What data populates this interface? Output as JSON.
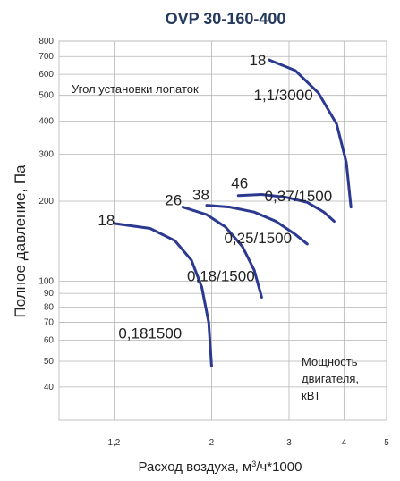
{
  "chart_data": {
    "type": "line",
    "title": "OVP 30-160-400",
    "xlabel": "Расход воздуха, м³/ч*1000",
    "ylabel": "Полное давление, Па",
    "x_scale": "log",
    "y_scale": "log",
    "xlim": [
      0.9,
      5
    ],
    "ylim": [
      30,
      800
    ],
    "x_ticks": [
      {
        "value": 1.2,
        "label": "1,2"
      },
      {
        "value": 2,
        "label": "2"
      },
      {
        "value": 3,
        "label": "3"
      },
      {
        "value": 4,
        "label": "4"
      },
      {
        "value": 5,
        "label": "5"
      }
    ],
    "y_ticks": [
      {
        "value": 40,
        "label": "40"
      },
      {
        "value": 50,
        "label": "50"
      },
      {
        "value": 60,
        "label": "60"
      },
      {
        "value": 70,
        "label": "70"
      },
      {
        "value": 80,
        "label": "80"
      },
      {
        "value": 90,
        "label": "90"
      },
      {
        "value": 100,
        "label": "100"
      },
      {
        "value": 200,
        "label": "200"
      },
      {
        "value": 300,
        "label": "300"
      },
      {
        "value": 400,
        "label": "400"
      },
      {
        "value": 500,
        "label": "500"
      },
      {
        "value": 600,
        "label": "600"
      },
      {
        "value": 700,
        "label": "700"
      },
      {
        "value": 800,
        "label": "800"
      }
    ],
    "grid": true,
    "annotations": {
      "blade_angle": "Угол установки лопаток",
      "motor_power": [
        "Мощность",
        "двигателя,",
        "кВТ"
      ]
    },
    "series": [
      {
        "angle_label": "18",
        "power_label": "1,1/3000",
        "points": [
          [
            2.7,
            680
          ],
          [
            3.1,
            620
          ],
          [
            3.5,
            510
          ],
          [
            3.85,
            390
          ],
          [
            4.05,
            280
          ],
          [
            4.15,
            190
          ]
        ]
      },
      {
        "angle_label": "46",
        "power_label": "0,37/1500",
        "points": [
          [
            2.3,
            210
          ],
          [
            2.6,
            212
          ],
          [
            2.95,
            207
          ],
          [
            3.3,
            198
          ],
          [
            3.6,
            182
          ],
          [
            3.8,
            168
          ]
        ]
      },
      {
        "angle_label": "38",
        "power_label": "0,25/1500",
        "points": [
          [
            1.95,
            193
          ],
          [
            2.2,
            190
          ],
          [
            2.5,
            182
          ],
          [
            2.8,
            168
          ],
          [
            3.1,
            150
          ],
          [
            3.3,
            138
          ]
        ]
      },
      {
        "angle_label": "26",
        "power_label": "0,18/1500",
        "points": [
          [
            1.72,
            190
          ],
          [
            1.95,
            178
          ],
          [
            2.15,
            160
          ],
          [
            2.35,
            135
          ],
          [
            2.5,
            110
          ],
          [
            2.6,
            87
          ]
        ]
      },
      {
        "angle_label": "18",
        "power_label": "0,181500",
        "points": [
          [
            1.2,
            165
          ],
          [
            1.45,
            158
          ],
          [
            1.65,
            142
          ],
          [
            1.8,
            120
          ],
          [
            1.9,
            95
          ],
          [
            1.97,
            70
          ],
          [
            2.0,
            48
          ]
        ]
      }
    ]
  }
}
